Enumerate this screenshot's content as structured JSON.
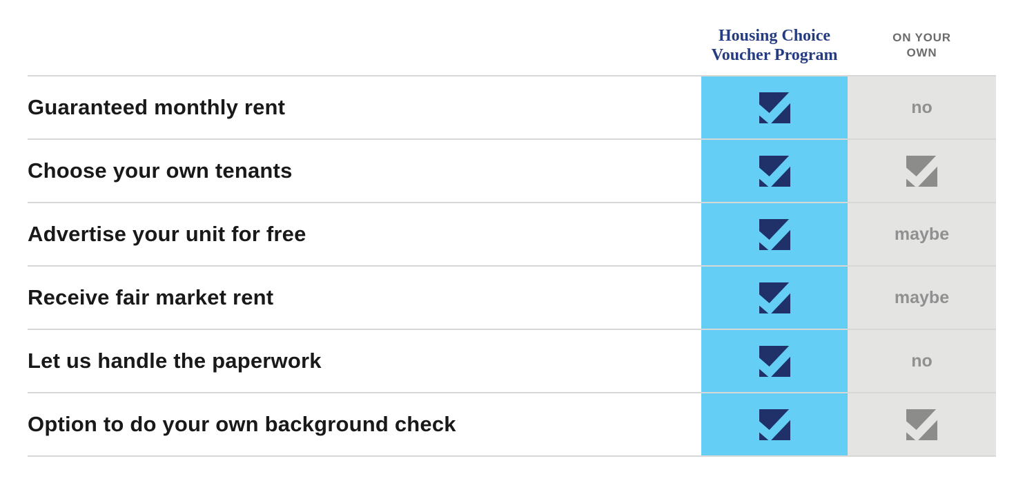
{
  "header": {
    "hcv_label": "Housing Choice Voucher Program",
    "own_label": "ON YOUR OWN"
  },
  "rows": [
    {
      "label": "Guaranteed monthly rent",
      "hcv": "check",
      "own": "no"
    },
    {
      "label": "Choose your own tenants",
      "hcv": "check",
      "own": "check"
    },
    {
      "label": "Advertise your unit for free",
      "hcv": "check",
      "own": "maybe"
    },
    {
      "label": "Receive fair market rent",
      "hcv": "check",
      "own": "maybe"
    },
    {
      "label": "Let us handle the paperwork",
      "hcv": "check",
      "own": "no"
    },
    {
      "label": "Option to do your own background check",
      "hcv": "check",
      "own": "check"
    }
  ],
  "icons": {
    "check": "checkbox-check-icon"
  },
  "colors": {
    "hcv_column_bg": "#65cef5",
    "own_column_bg": "#e4e4e3",
    "hcv_check": "#1f3168",
    "own_check": "#8c8c8b",
    "hcv_header_text": "#263c80",
    "own_header_text": "#6b6b6b",
    "row_label_text": "#191919",
    "own_value_text": "#909090",
    "divider": "#d7d7d6"
  }
}
